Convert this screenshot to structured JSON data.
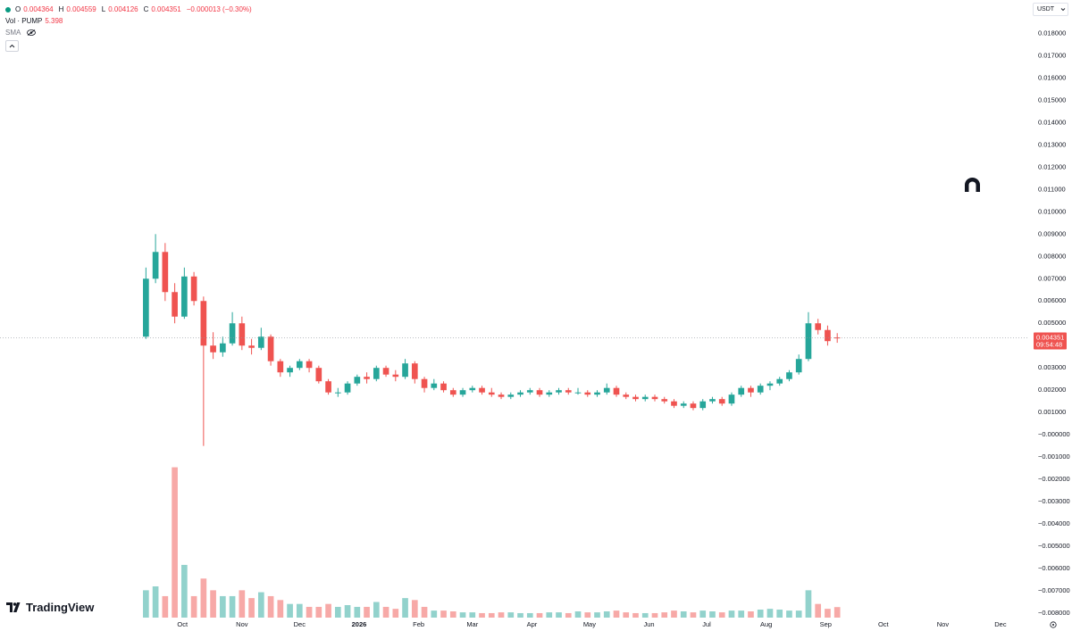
{
  "chart_data": {
    "type": "candlestick",
    "ohlc_labels": [
      "O",
      "H",
      "L",
      "C"
    ],
    "change": "−0.000013 (−0.30%)",
    "volume_label": "Vol · PUMP",
    "indicator": "SMA",
    "currency": "USDT",
    "countdown": "09:54:48",
    "watermark": "TradingView",
    "up_color": "#26a69a",
    "down_color": "#ef5350",
    "grid": false,
    "x": [
      11,
      16,
      21,
      26,
      31,
      36,
      41,
      46,
      51,
      56,
      61,
      66,
      71,
      76,
      81,
      86,
      91,
      96,
      101,
      106,
      111,
      116,
      121,
      126,
      131,
      136,
      141,
      146,
      151,
      156,
      161,
      166,
      171,
      176,
      181,
      186,
      191,
      196,
      201,
      206,
      211,
      216,
      221,
      226,
      231,
      236,
      241,
      246,
      251,
      256,
      261,
      266,
      271,
      276,
      281,
      286,
      291,
      296,
      301,
      306,
      311,
      316,
      321,
      326,
      331,
      336,
      341,
      346,
      351,
      356,
      361,
      366,
      371
    ],
    "open": [
      0.0044,
      0.007,
      0.0082,
      0.0064,
      0.0053,
      0.0071,
      0.006,
      0.004,
      0.0037,
      0.0041,
      0.005,
      0.004,
      0.0039,
      0.0044,
      0.0033,
      0.0028,
      0.003,
      0.0033,
      0.003,
      0.0024,
      0.0019,
      0.0019,
      0.0023,
      0.0026,
      0.0025,
      0.003,
      0.0027,
      0.0026,
      0.0032,
      0.0025,
      0.0021,
      0.0023,
      0.002,
      0.0018,
      0.002,
      0.0021,
      0.0019,
      0.0018,
      0.0017,
      0.0018,
      0.0019,
      0.002,
      0.0018,
      0.0019,
      0.002,
      0.0019,
      0.0019,
      0.0018,
      0.0019,
      0.0021,
      0.0018,
      0.0017,
      0.0016,
      0.0017,
      0.0016,
      0.0015,
      0.0013,
      0.0014,
      0.0012,
      0.0015,
      0.0016,
      0.0014,
      0.0018,
      0.0021,
      0.0019,
      0.0022,
      0.0023,
      0.0025,
      0.0028,
      0.0034,
      0.005,
      0.0047,
      0.004364
    ],
    "high": [
      0.0075,
      0.009,
      0.0086,
      0.0068,
      0.0075,
      0.0073,
      0.0062,
      0.0046,
      0.0044,
      0.0055,
      0.0053,
      0.0043,
      0.0048,
      0.0045,
      0.0034,
      0.0031,
      0.0034,
      0.0034,
      0.0031,
      0.0025,
      0.0021,
      0.0024,
      0.0027,
      0.0028,
      0.0031,
      0.0031,
      0.0029,
      0.0034,
      0.0033,
      0.0026,
      0.0025,
      0.0024,
      0.0021,
      0.0021,
      0.0022,
      0.0022,
      0.0021,
      0.0019,
      0.0019,
      0.002,
      0.0021,
      0.0021,
      0.002,
      0.0021,
      0.0021,
      0.0021,
      0.002,
      0.002,
      0.0023,
      0.0022,
      0.0019,
      0.0018,
      0.0018,
      0.0018,
      0.0017,
      0.0016,
      0.0015,
      0.0015,
      0.0016,
      0.0017,
      0.0017,
      0.0019,
      0.0022,
      0.0022,
      0.0023,
      0.0024,
      0.0026,
      0.0029,
      0.0036,
      0.0055,
      0.0052,
      0.0049,
      0.004559
    ],
    "low": [
      0.0043,
      0.0068,
      0.006,
      0.005,
      0.0052,
      0.0058,
      -0.0005,
      0.0034,
      0.0035,
      0.004,
      0.0038,
      0.0036,
      0.0038,
      0.0031,
      0.0026,
      0.0026,
      0.0029,
      0.0028,
      0.0023,
      0.0018,
      0.0017,
      0.0018,
      0.0022,
      0.0023,
      0.0024,
      0.0026,
      0.0024,
      0.0025,
      0.0023,
      0.0019,
      0.002,
      0.0019,
      0.0017,
      0.0017,
      0.0019,
      0.0018,
      0.0017,
      0.0016,
      0.0016,
      0.0017,
      0.0018,
      0.0017,
      0.0017,
      0.0018,
      0.0018,
      0.0018,
      0.0017,
      0.0017,
      0.0018,
      0.0017,
      0.0016,
      0.0015,
      0.0015,
      0.0015,
      0.0014,
      0.0012,
      0.0012,
      0.0011,
      0.0011,
      0.0014,
      0.0013,
      0.0013,
      0.0017,
      0.0017,
      0.0018,
      0.002,
      0.0022,
      0.0024,
      0.0027,
      0.0033,
      0.0045,
      0.004,
      0.004126
    ],
    "close": [
      0.007,
      0.0082,
      0.0064,
      0.0053,
      0.0071,
      0.006,
      0.004,
      0.0037,
      0.0041,
      0.005,
      0.004,
      0.0039,
      0.0044,
      0.0033,
      0.0028,
      0.003,
      0.0033,
      0.003,
      0.0024,
      0.0019,
      0.0019,
      0.0023,
      0.0026,
      0.0025,
      0.003,
      0.0027,
      0.0026,
      0.0032,
      0.0025,
      0.0021,
      0.0023,
      0.002,
      0.0018,
      0.002,
      0.0021,
      0.0019,
      0.0018,
      0.0017,
      0.0018,
      0.0019,
      0.002,
      0.0018,
      0.0019,
      0.002,
      0.0019,
      0.0019,
      0.0018,
      0.0019,
      0.0021,
      0.0018,
      0.0017,
      0.0016,
      0.0017,
      0.0016,
      0.0015,
      0.0013,
      0.0014,
      0.0012,
      0.0015,
      0.0016,
      0.0014,
      0.0018,
      0.0021,
      0.0019,
      0.0022,
      0.0023,
      0.0025,
      0.0028,
      0.0034,
      0.005,
      0.0047,
      0.0042,
      0.004351
    ],
    "volume": [
      14,
      16,
      11,
      77,
      27,
      11,
      20,
      14,
      11,
      11,
      14,
      10,
      13,
      11,
      9,
      7,
      7,
      5.5,
      5.5,
      7,
      5.5,
      6.4,
      5.5,
      5.5,
      8,
      5.5,
      4.5,
      10,
      9,
      5.5,
      3.6,
      3.6,
      3.2,
      2.7,
      2.7,
      2.3,
      2.3,
      2.7,
      2.7,
      2.3,
      2.3,
      2.3,
      2.7,
      2.7,
      2.3,
      3.2,
      2.7,
      2.7,
      3.2,
      3.6,
      2.7,
      2.3,
      2.3,
      2.3,
      2.7,
      3.6,
      3.2,
      2.7,
      3.6,
      3.2,
      2.7,
      3.6,
      3.6,
      3.2,
      4.1,
      4.5,
      4.1,
      3.6,
      3.6,
      14,
      7,
      4.5,
      5.398
    ],
    "volume_ylim": [
      0,
      80
    ],
    "xlim": [
      -65,
      470
    ],
    "xticks": [
      {
        "value": 30,
        "label": "Oct"
      },
      {
        "value": 61,
        "label": "Nov"
      },
      {
        "value": 91,
        "label": "Dec"
      },
      {
        "value": 122,
        "label": "2026"
      },
      {
        "value": 153,
        "label": "Feb"
      },
      {
        "value": 181,
        "label": "Mar"
      },
      {
        "value": 212,
        "label": "Apr"
      },
      {
        "value": 242,
        "label": "May"
      },
      {
        "value": 273,
        "label": "Jun"
      },
      {
        "value": 303,
        "label": "Jul"
      },
      {
        "value": 334,
        "label": "Aug"
      },
      {
        "value": 365,
        "label": "Sep"
      },
      {
        "value": 395,
        "label": "Oct"
      },
      {
        "value": 426,
        "label": "Nov"
      },
      {
        "value": 456,
        "label": "Dec"
      }
    ],
    "ylim": [
      -0.0082,
      0.0195
    ],
    "yticks": [
      {
        "value": 0.018,
        "label": "0.018000"
      },
      {
        "value": 0.017,
        "label": "0.017000"
      },
      {
        "value": 0.016,
        "label": "0.016000"
      },
      {
        "value": 0.015,
        "label": "0.015000"
      },
      {
        "value": 0.014,
        "label": "0.014000"
      },
      {
        "value": 0.013,
        "label": "0.013000"
      },
      {
        "value": 0.012,
        "label": "0.012000"
      },
      {
        "value": 0.011,
        "label": "0.011000"
      },
      {
        "value": 0.01,
        "label": "0.010000"
      },
      {
        "value": 0.009,
        "label": "0.009000"
      },
      {
        "value": 0.008,
        "label": "0.008000"
      },
      {
        "value": 0.007,
        "label": "0.007000"
      },
      {
        "value": 0.006,
        "label": "0.006000"
      },
      {
        "value": 0.005,
        "label": "0.005000"
      },
      {
        "value": 0.004,
        "label": "0.004000"
      },
      {
        "value": 0.003,
        "label": "0.003000"
      },
      {
        "value": 0.002,
        "label": "0.002000"
      },
      {
        "value": 0.001,
        "label": "0.001000"
      },
      {
        "value": 0,
        "label": "−0.000000"
      },
      {
        "value": -0.001,
        "label": "−0.001000"
      },
      {
        "value": -0.002,
        "label": "−0.002000"
      },
      {
        "value": -0.003,
        "label": "−0.003000"
      },
      {
        "value": -0.004,
        "label": "−0.004000"
      },
      {
        "value": -0.005,
        "label": "−0.005000"
      },
      {
        "value": -0.006,
        "label": "−0.006000"
      },
      {
        "value": -0.007,
        "label": "−0.007000"
      },
      {
        "value": -0.008,
        "label": "−0.008000"
      }
    ]
  }
}
